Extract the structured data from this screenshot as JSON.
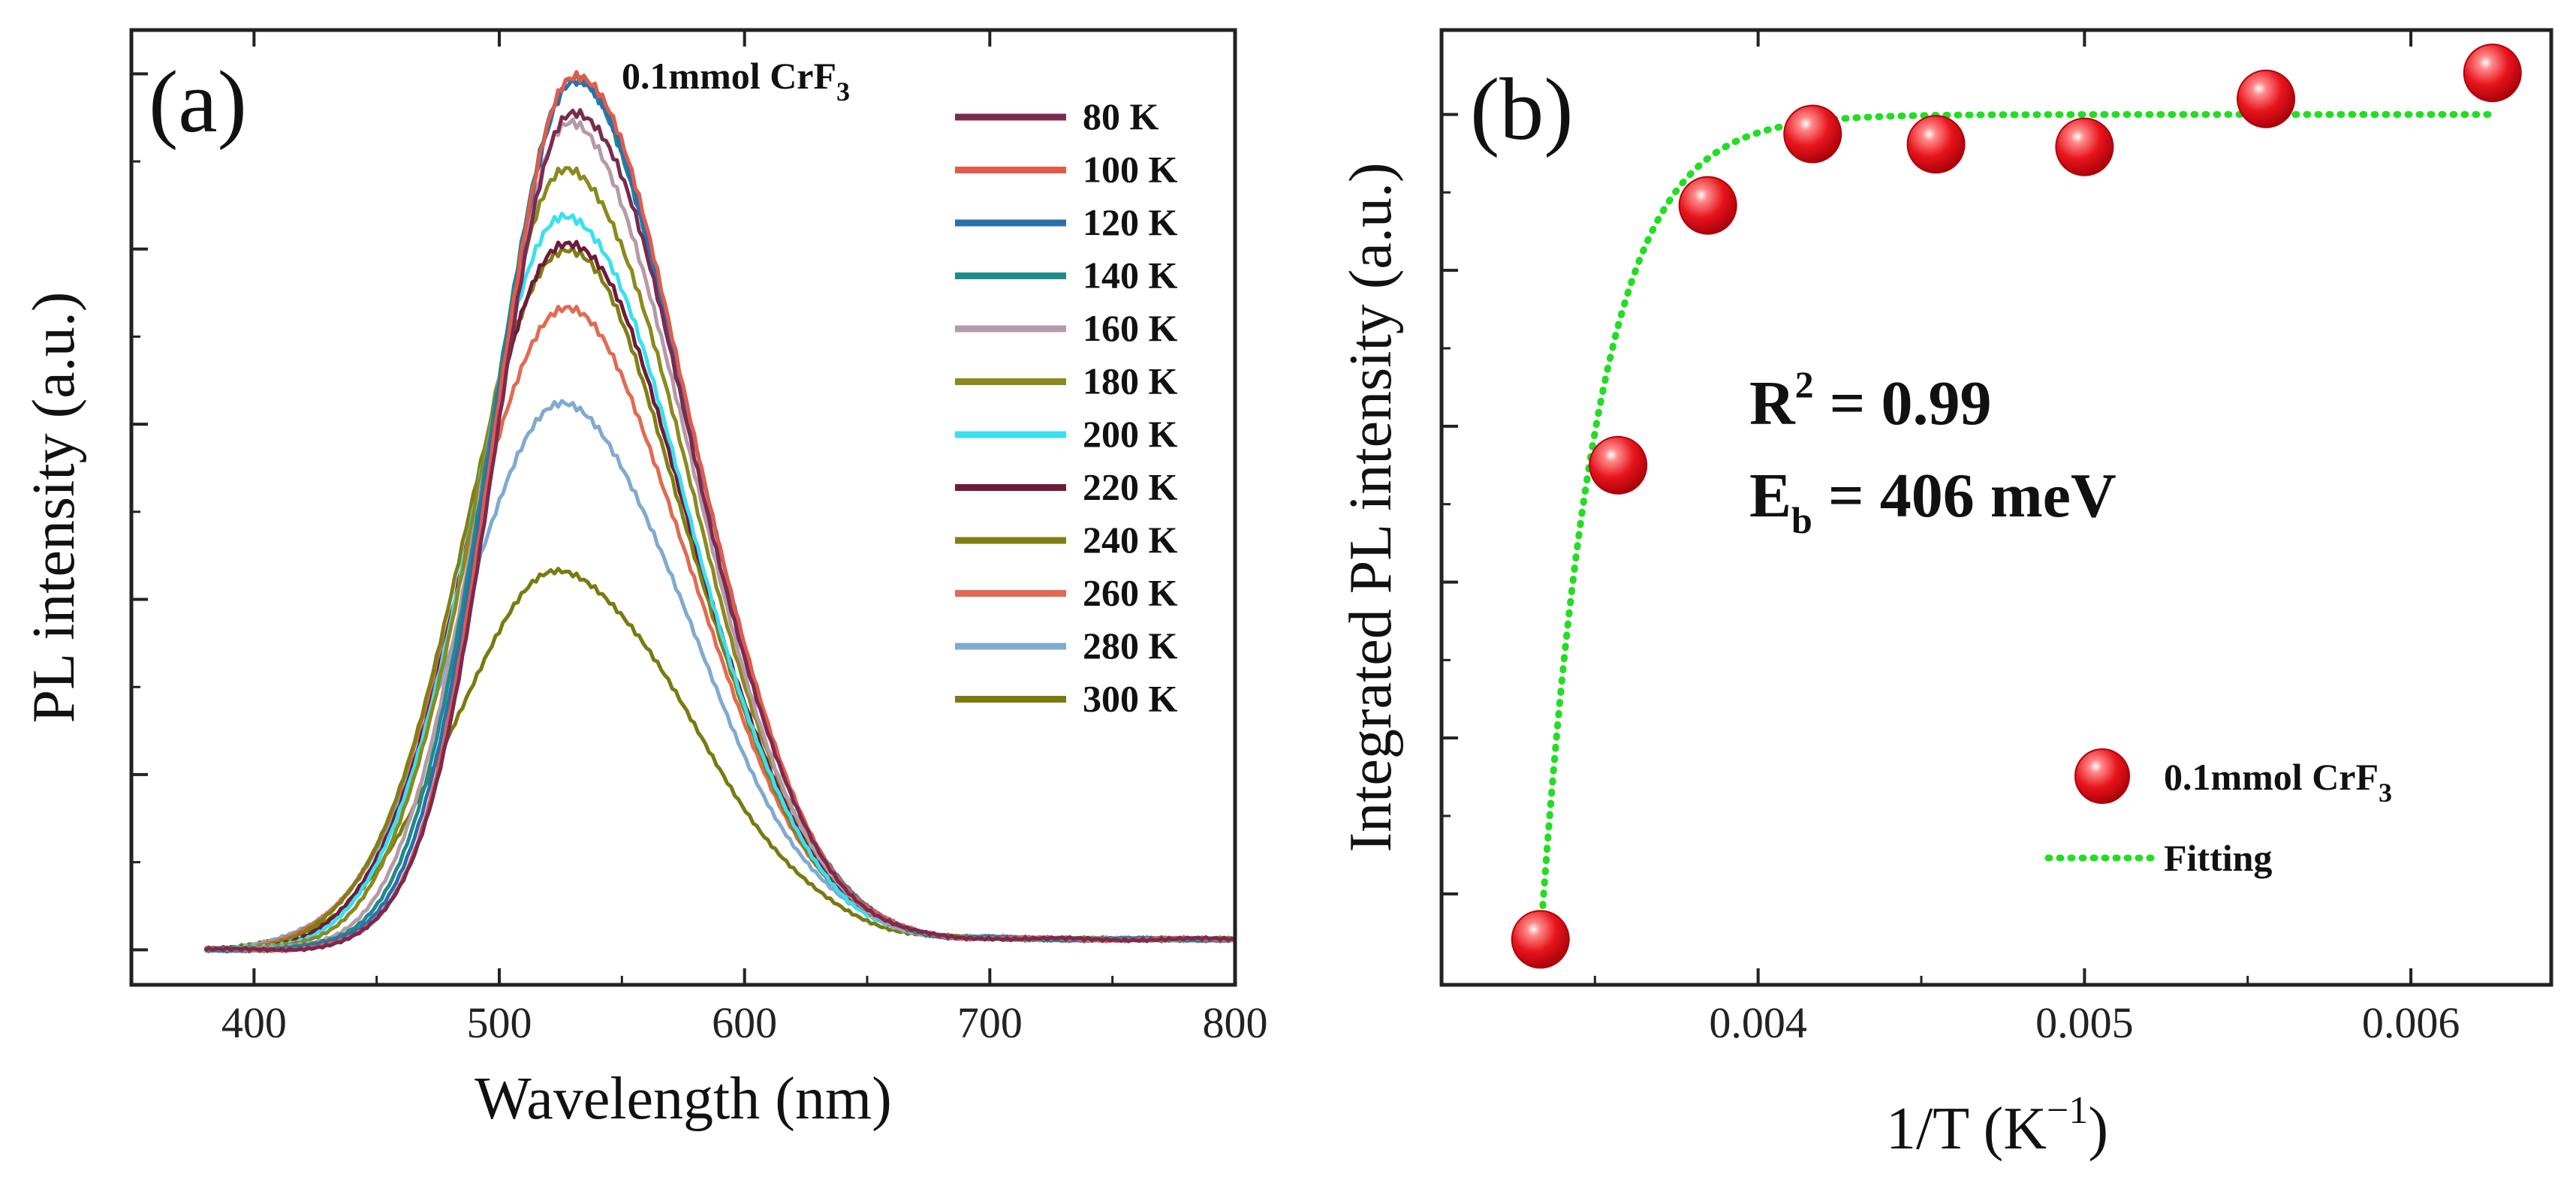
{
  "chart_data": [
    {
      "panel": "(a)",
      "type": "line",
      "title": "",
      "xlabel": "Wavelength (nm)",
      "ylabel": "PL intensity (a.u.)",
      "xlim": [
        350,
        800
      ],
      "ylim": [
        -0.04,
        1.05
      ],
      "x_ticks": [
        400,
        500,
        600,
        700,
        800
      ],
      "y_ticks": [
        0,
        0.2,
        0.4,
        0.6,
        0.8,
        1.0
      ],
      "show_y_tick_labels": false,
      "grid": false,
      "legend_title": "0.1mmol CrF",
      "legend_title_sub": "3",
      "legend_position": "top-right",
      "series": [
        {
          "name": "80 K",
          "color": "#7b2a4f",
          "peak": 530,
          "amplitude": 0.96,
          "sigma_left": 31,
          "sigma_right": 48
        },
        {
          "name": "100 K",
          "color": "#e35a4a",
          "peak": 530,
          "amplitude": 1.0,
          "sigma_left": 31,
          "sigma_right": 48
        },
        {
          "name": "120 K",
          "color": "#2a6fb0",
          "peak": 530,
          "amplitude": 0.99,
          "sigma_left": 32,
          "sigma_right": 48
        },
        {
          "name": "140 K",
          "color": "#1f8a8a",
          "peak": 530,
          "amplitude": 0.99,
          "sigma_left": 33,
          "sigma_right": 48
        },
        {
          "name": "160 K",
          "color": "#b59aa8",
          "peak": 529,
          "amplitude": 0.94,
          "sigma_left": 34,
          "sigma_right": 48
        },
        {
          "name": "180 K",
          "color": "#8a8a1e",
          "peak": 528,
          "amplitude": 0.89,
          "sigma_left": 36,
          "sigma_right": 49
        },
        {
          "name": "200 K",
          "color": "#38e0f2",
          "peak": 527,
          "amplitude": 0.84,
          "sigma_left": 37,
          "sigma_right": 49
        },
        {
          "name": "220 K",
          "color": "#6e1b3a",
          "peak": 527,
          "amplitude": 0.81,
          "sigma_left": 38,
          "sigma_right": 50
        },
        {
          "name": "240 K",
          "color": "#7f7f14",
          "peak": 526,
          "amplitude": 0.8,
          "sigma_left": 39,
          "sigma_right": 50
        },
        {
          "name": "260 K",
          "color": "#e06b52",
          "peak": 526,
          "amplitude": 0.73,
          "sigma_left": 40,
          "sigma_right": 51
        },
        {
          "name": "280 K",
          "color": "#7faad2",
          "peak": 525,
          "amplitude": 0.62,
          "sigma_left": 41,
          "sigma_right": 52
        },
        {
          "name": "300 K",
          "color": "#7a7a10",
          "peak": 524,
          "amplitude": 0.43,
          "sigma_left": 42,
          "sigma_right": 54
        }
      ]
    },
    {
      "panel": "(b)",
      "type": "scatter",
      "title": "",
      "xlabel": "1/T (K",
      "xlabel_sup": "−1",
      "xlabel_end": ")",
      "ylabel": "Integrated PL intensity (a.u.)",
      "xlim": [
        0.00303,
        0.00643
      ],
      "ylim": [
        0.33,
        1.065
      ],
      "x_ticks": [
        0.004,
        0.005,
        0.006
      ],
      "x_tick_labels": [
        "0.004",
        "0.005",
        "0.006"
      ],
      "y_ticks": [
        0.4,
        0.52,
        0.64,
        0.76,
        0.88,
        1.0
      ],
      "show_y_tick_labels": false,
      "grid": false,
      "legend_position": "bottom-right",
      "series": [
        {
          "name": "0.1mmol CrF",
          "name_sub": "3",
          "color": "#e8141c",
          "x": [
            0.003333,
            0.003571,
            0.003846,
            0.004167,
            0.004545,
            0.005,
            0.005556,
            0.00625
          ],
          "y": [
            0.365,
            0.73,
            0.93,
            0.985,
            0.977,
            0.975,
            1.012,
            1.032
          ]
        },
        {
          "name": "Fitting",
          "color": "#22dd22",
          "style": "dotted",
          "fit": {
            "model": "1 - (1-y0)*exp(-(x-x0)/tau)",
            "x0": 0.003333,
            "y0": 0.365,
            "tau": 0.000175,
            "plateau": 1.0
          },
          "x_range": [
            0.003333,
            0.00625
          ]
        }
      ],
      "annotations": {
        "r2_label": "R",
        "r2_sup": "2",
        "r2_value": " = 0.99",
        "eb_label": "E",
        "eb_sub": "b",
        "eb_value": " = 406 meV"
      }
    }
  ]
}
